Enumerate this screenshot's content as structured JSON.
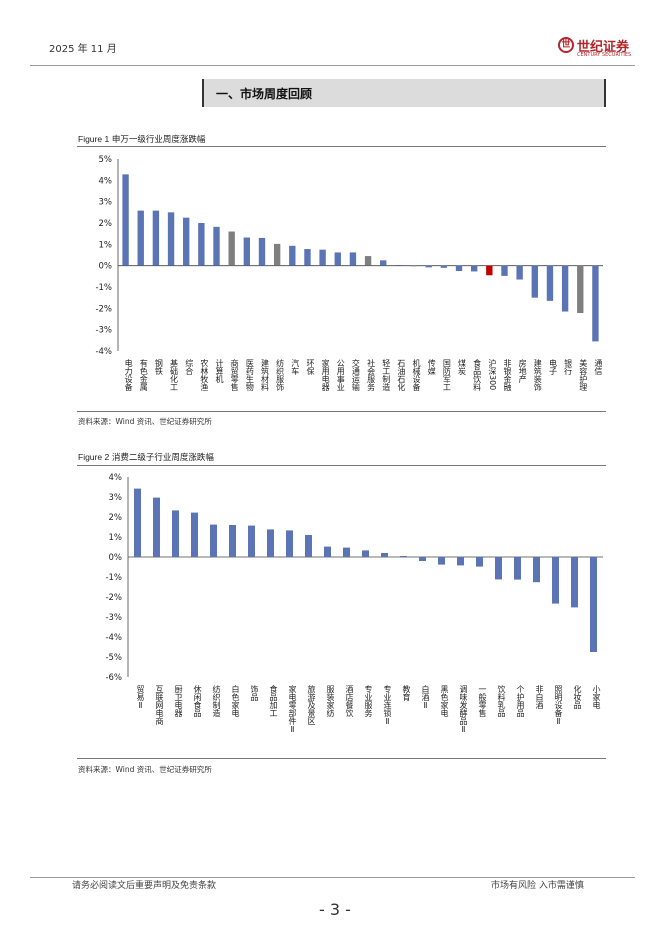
{
  "header": {
    "date": "2025 年 11 月",
    "logo_cn": "世纪证券",
    "logo_en": "CENTURY SECURITIES"
  },
  "section_title": "一、市场周度回顾",
  "colors": {
    "bar": "#5b74b5",
    "gray": "#7f7f7f",
    "red": "#c00000",
    "brand": "#b3262c"
  },
  "chart_data": [
    {
      "type": "bar",
      "label": "Figure 1",
      "title": "申万一级行业周度涨跌幅",
      "ylim": [
        -4,
        5
      ],
      "yticks": [
        5,
        4,
        3,
        2,
        1,
        0,
        -1,
        -2,
        -3,
        -4
      ],
      "tick_suffix": "%",
      "categories": [
        "电力设备",
        "有色金属",
        "钢铁",
        "基础化工",
        "综合",
        "农林牧渔",
        "计算机",
        "商贸零售",
        "医药生物",
        "建筑材料",
        "纺织服饰",
        "汽车",
        "环保",
        "家用电器",
        "公用事业",
        "交通运输",
        "社会服务",
        "轻工制造",
        "石油石化",
        "机械设备",
        "传媒",
        "国防军工",
        "煤炭",
        "食品饮料",
        "沪深300",
        "非银金融",
        "房地产",
        "建筑装饰",
        "电子",
        "银行",
        "美容护理",
        "通信"
      ],
      "values": [
        4.28,
        2.58,
        2.58,
        2.5,
        2.25,
        2.0,
        1.82,
        1.6,
        1.32,
        1.3,
        1.02,
        0.93,
        0.78,
        0.75,
        0.62,
        0.62,
        0.45,
        0.25,
        0.03,
        -0.02,
        -0.08,
        -0.1,
        -0.25,
        -0.27,
        -0.45,
        -0.48,
        -0.65,
        -1.5,
        -1.65,
        -2.15,
        -2.22,
        -3.55
      ],
      "highlight": {
        "7": "gray",
        "10": "gray",
        "16": "gray",
        "24": "red",
        "30": "gray"
      },
      "source": "资料来源：Wind 资讯、世纪证券研究所"
    },
    {
      "type": "bar",
      "label": "Figure 2",
      "title": "消费二级子行业周度涨跌幅",
      "ylim": [
        -6,
        4
      ],
      "yticks": [
        4,
        3,
        2,
        1,
        0,
        -1,
        -2,
        -3,
        -4,
        -5,
        -6
      ],
      "tick_suffix": "%",
      "categories": [
        "贸易Ⅱ",
        "互联网电商",
        "厨卫电器",
        "休闲食品",
        "纺织制造",
        "白色家电",
        "饰品",
        "食品加工",
        "家电零部件Ⅱ",
        "旅游及景区",
        "服装家纺",
        "酒店餐饮",
        "专业服务",
        "专业连锁Ⅱ",
        "教育",
        "白酒Ⅱ",
        "黑色家电",
        "调味发酵品Ⅱ",
        "一般零售",
        "饮料乳品",
        "个护用品",
        "非白酒",
        "照明设备Ⅱ",
        "化妆品",
        "小家电"
      ],
      "values": [
        3.42,
        2.97,
        2.33,
        2.22,
        1.62,
        1.6,
        1.57,
        1.38,
        1.33,
        1.1,
        0.52,
        0.47,
        0.33,
        0.2,
        0.05,
        -0.2,
        -0.38,
        -0.42,
        -0.48,
        -1.12,
        -1.13,
        -1.26,
        -2.33,
        -2.52,
        -4.75
      ],
      "source": "资料来源：Wind 资讯、世纪证券研究所"
    }
  ],
  "footer": {
    "disclaimer": "请务必阅读文后重要声明及免责条款",
    "risk": "市场有风险  入市需谨慎",
    "page": "- 3 -"
  }
}
